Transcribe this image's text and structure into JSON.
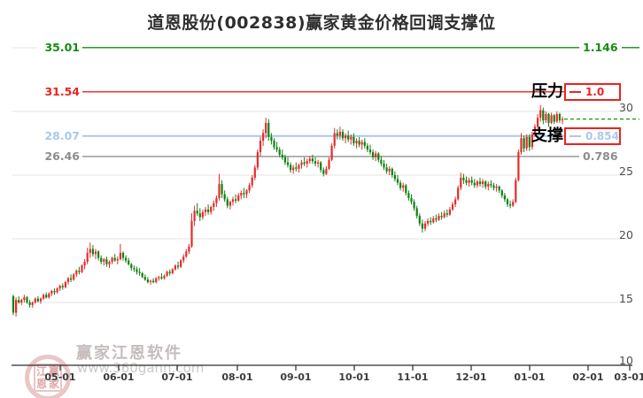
{
  "title": "道恩股份(002838)赢家黄金价格回调支撑位",
  "annotations": {
    "pressure_label": "压力",
    "support_label": "支撑",
    "pressure_value": "1.0",
    "support_value": "0.854"
  },
  "levels": [
    {
      "id": "ratio-1146",
      "price": 35.01,
      "price_label": "35.01",
      "ratio_label": "1.146",
      "color": "#168a16",
      "boxed": false
    },
    {
      "id": "pressure",
      "price": 31.54,
      "price_label": "31.54",
      "ratio_label": "1.0",
      "color": "#ee2222",
      "boxed": true
    },
    {
      "id": "support",
      "price": 28.07,
      "price_label": "28.07",
      "ratio_label": "0.854",
      "color": "#aac8ea",
      "boxed": true
    },
    {
      "id": "ratio-0786",
      "price": 26.46,
      "price_label": "26.46",
      "ratio_label": "0.786",
      "color": "#909090",
      "boxed": false
    }
  ],
  "y_axis": {
    "tick_labels": [
      "30",
      "25",
      "20",
      "15",
      "10"
    ],
    "tick_values": [
      30,
      25,
      20,
      15,
      10
    ]
  },
  "x_axis": {
    "tick_labels": [
      "05-01",
      "06-01",
      "07-01",
      "08-01",
      "09-01",
      "10-01",
      "11-01",
      "12-01",
      "01-01",
      "02-01",
      "03-01"
    ]
  },
  "watermark": {
    "brand": "赢家江恩软件",
    "url": "www.360gann.com",
    "seal_chars": [
      "江",
      "赢",
      "恩",
      "家"
    ]
  },
  "chart_data": {
    "type": "candlestick",
    "title": "道恩股份(002838)赢家黄金价格回调支撑位",
    "symbol": "道恩股份",
    "code": "002838",
    "up_color": "#e62b2b",
    "down_color": "#0e820e",
    "grid_prices": [
      35,
      30,
      25,
      20,
      15
    ],
    "price_levels": [
      {
        "ratio": "1.146",
        "price": 35.01
      },
      {
        "ratio": "1.0",
        "price": 31.54,
        "role": "压力"
      },
      {
        "ratio": "0.854",
        "price": 28.07,
        "role": "支撑"
      },
      {
        "ratio": "0.786",
        "price": 26.46
      }
    ],
    "current_price_line": 29.4,
    "x_tick_labels": [
      "05-01",
      "06-01",
      "07-01",
      "08-01",
      "09-01",
      "10-01",
      "11-01",
      "12-01",
      "01-01",
      "02-01",
      "03-01"
    ],
    "candles": [
      [
        15.5,
        15.6,
        14.0,
        14.2
      ],
      [
        14.2,
        15.4,
        13.9,
        15.2
      ],
      [
        15.2,
        15.5,
        14.9,
        15.0
      ],
      [
        15.0,
        15.3,
        14.8,
        15.2
      ],
      [
        15.2,
        15.6,
        15.0,
        15.4
      ],
      [
        15.4,
        15.5,
        14.9,
        15.0
      ],
      [
        15.0,
        15.2,
        14.6,
        14.8
      ],
      [
        14.8,
        15.1,
        14.6,
        15.0
      ],
      [
        15.0,
        15.4,
        14.9,
        15.3
      ],
      [
        15.3,
        15.5,
        15.0,
        15.1
      ],
      [
        15.1,
        15.4,
        14.9,
        15.3
      ],
      [
        15.3,
        15.7,
        15.2,
        15.6
      ],
      [
        15.6,
        15.8,
        15.3,
        15.4
      ],
      [
        15.4,
        15.8,
        15.3,
        15.7
      ],
      [
        15.7,
        16.0,
        15.5,
        15.9
      ],
      [
        15.9,
        16.1,
        15.6,
        15.8
      ],
      [
        15.8,
        16.2,
        15.7,
        16.1
      ],
      [
        16.1,
        16.4,
        15.9,
        16.3
      ],
      [
        16.3,
        16.5,
        16.0,
        16.2
      ],
      [
        16.2,
        16.7,
        16.1,
        16.6
      ],
      [
        16.6,
        17.0,
        16.4,
        16.9
      ],
      [
        16.9,
        17.2,
        16.6,
        16.8
      ],
      [
        16.8,
        17.3,
        16.7,
        17.2
      ],
      [
        17.2,
        17.6,
        17.0,
        17.5
      ],
      [
        17.5,
        17.8,
        17.2,
        17.4
      ],
      [
        17.4,
        18.0,
        17.3,
        17.9
      ],
      [
        17.9,
        18.4,
        17.6,
        18.2
      ],
      [
        18.2,
        19.3,
        18.0,
        18.9
      ],
      [
        18.9,
        19.7,
        18.5,
        19.2
      ],
      [
        19.2,
        19.5,
        18.6,
        18.8
      ],
      [
        18.8,
        19.2,
        18.4,
        19.0
      ],
      [
        19.0,
        19.1,
        18.3,
        18.5
      ],
      [
        18.5,
        18.7,
        18.0,
        18.2
      ],
      [
        18.2,
        18.5,
        17.9,
        18.4
      ],
      [
        18.4,
        18.6,
        17.8,
        18.0
      ],
      [
        18.0,
        18.3,
        17.7,
        18.2
      ],
      [
        18.2,
        18.6,
        18.0,
        18.5
      ],
      [
        18.5,
        18.8,
        18.2,
        18.3
      ],
      [
        18.3,
        18.6,
        18.0,
        18.4
      ],
      [
        18.4,
        19.6,
        18.3,
        18.9
      ],
      [
        18.9,
        19.0,
        18.3,
        18.5
      ],
      [
        18.5,
        18.7,
        18.1,
        18.3
      ],
      [
        18.3,
        18.5,
        17.9,
        18.0
      ],
      [
        18.0,
        18.1,
        17.5,
        17.7
      ],
      [
        17.7,
        17.9,
        17.4,
        17.6
      ],
      [
        17.6,
        17.8,
        17.2,
        17.4
      ],
      [
        17.4,
        17.7,
        17.1,
        17.3
      ],
      [
        17.3,
        17.4,
        16.9,
        17.0
      ],
      [
        17.0,
        17.2,
        16.7,
        16.8
      ],
      [
        16.8,
        17.0,
        16.5,
        16.6
      ],
      [
        16.6,
        16.8,
        16.4,
        16.7
      ],
      [
        16.7,
        16.9,
        16.5,
        16.6
      ],
      [
        16.6,
        17.0,
        16.5,
        16.9
      ],
      [
        16.9,
        17.1,
        16.7,
        17.0
      ],
      [
        17.0,
        17.3,
        16.8,
        16.9
      ],
      [
        16.9,
        17.2,
        16.8,
        17.1
      ],
      [
        17.1,
        17.5,
        17.0,
        17.4
      ],
      [
        17.4,
        17.6,
        17.1,
        17.3
      ],
      [
        17.3,
        17.7,
        17.2,
        17.6
      ],
      [
        17.6,
        18.0,
        17.5,
        17.9
      ],
      [
        17.9,
        18.2,
        17.6,
        17.8
      ],
      [
        17.8,
        18.4,
        17.7,
        18.3
      ],
      [
        18.3,
        18.8,
        18.1,
        18.6
      ],
      [
        18.6,
        19.2,
        18.5,
        19.0
      ],
      [
        19.0,
        19.6,
        18.8,
        19.4
      ],
      [
        19.4,
        22.0,
        19.3,
        21.4
      ],
      [
        21.4,
        22.6,
        21.0,
        22.2
      ],
      [
        22.2,
        22.8,
        21.8,
        22.0
      ],
      [
        22.0,
        22.4,
        21.4,
        21.7
      ],
      [
        21.7,
        22.3,
        21.5,
        22.1
      ],
      [
        22.1,
        22.5,
        21.8,
        22.3
      ],
      [
        22.3,
        22.7,
        21.9,
        22.1
      ],
      [
        22.1,
        22.6,
        21.9,
        22.5
      ],
      [
        22.5,
        23.0,
        22.2,
        22.8
      ],
      [
        22.8,
        23.4,
        22.5,
        23.2
      ],
      [
        23.2,
        25.1,
        23.0,
        24.3
      ],
      [
        24.3,
        24.6,
        23.2,
        23.5
      ],
      [
        23.5,
        23.8,
        22.9,
        23.1
      ],
      [
        23.1,
        23.3,
        22.4,
        22.6
      ],
      [
        22.6,
        23.0,
        22.3,
        22.9
      ],
      [
        22.9,
        23.3,
        22.6,
        23.1
      ],
      [
        23.1,
        23.5,
        22.8,
        23.0
      ],
      [
        23.0,
        23.6,
        22.9,
        23.4
      ],
      [
        23.4,
        23.8,
        23.1,
        23.6
      ],
      [
        23.6,
        24.0,
        23.2,
        23.5
      ],
      [
        23.5,
        23.9,
        23.2,
        23.8
      ],
      [
        23.8,
        24.4,
        23.6,
        24.2
      ],
      [
        24.2,
        25.0,
        24.0,
        24.8
      ],
      [
        24.8,
        25.8,
        24.6,
        25.6
      ],
      [
        25.6,
        27.0,
        25.4,
        26.8
      ],
      [
        26.8,
        28.0,
        26.5,
        27.7
      ],
      [
        27.7,
        28.6,
        27.3,
        28.3
      ],
      [
        28.3,
        29.5,
        27.9,
        29.1
      ],
      [
        29.1,
        29.4,
        27.7,
        28.0
      ],
      [
        28.0,
        28.3,
        27.4,
        27.7
      ],
      [
        27.7,
        27.9,
        27.0,
        27.2
      ],
      [
        27.2,
        27.6,
        26.8,
        27.0
      ],
      [
        27.0,
        27.2,
        26.4,
        26.6
      ],
      [
        26.6,
        27.0,
        26.2,
        26.4
      ],
      [
        26.4,
        26.6,
        25.8,
        26.0
      ],
      [
        26.0,
        26.4,
        25.6,
        25.8
      ],
      [
        25.8,
        26.0,
        25.2,
        25.4
      ],
      [
        25.4,
        25.8,
        25.1,
        25.6
      ],
      [
        25.6,
        26.0,
        25.3,
        25.5
      ],
      [
        25.5,
        25.9,
        25.2,
        25.8
      ],
      [
        25.8,
        26.2,
        25.5,
        26.0
      ],
      [
        26.0,
        26.4,
        25.7,
        25.9
      ],
      [
        25.9,
        26.3,
        25.6,
        26.1
      ],
      [
        26.1,
        26.5,
        25.9,
        26.3
      ],
      [
        26.3,
        26.6,
        25.9,
        26.1
      ],
      [
        26.1,
        26.4,
        25.7,
        25.9
      ],
      [
        25.9,
        26.2,
        25.6,
        26.0
      ],
      [
        26.0,
        26.1,
        25.2,
        25.4
      ],
      [
        25.4,
        25.6,
        24.9,
        25.1
      ],
      [
        25.1,
        25.7,
        25.0,
        25.5
      ],
      [
        25.5,
        26.4,
        25.4,
        26.2
      ],
      [
        26.2,
        27.5,
        26.1,
        27.3
      ],
      [
        27.3,
        28.7,
        27.1,
        28.3
      ],
      [
        28.3,
        28.6,
        27.8,
        28.1
      ],
      [
        28.1,
        28.8,
        27.8,
        28.4
      ],
      [
        28.4,
        28.6,
        27.7,
        27.9
      ],
      [
        27.9,
        28.3,
        27.5,
        28.1
      ],
      [
        28.1,
        28.5,
        27.6,
        27.8
      ],
      [
        27.8,
        28.2,
        27.4,
        28.0
      ],
      [
        28.0,
        28.3,
        27.3,
        27.5
      ],
      [
        27.5,
        27.9,
        27.1,
        27.7
      ],
      [
        27.7,
        28.0,
        27.2,
        27.4
      ],
      [
        27.4,
        27.8,
        27.0,
        27.6
      ],
      [
        27.6,
        27.9,
        27.1,
        27.3
      ],
      [
        27.3,
        27.5,
        26.8,
        27.0
      ],
      [
        27.0,
        27.4,
        26.6,
        26.8
      ],
      [
        26.8,
        27.0,
        26.2,
        26.4
      ],
      [
        26.4,
        26.9,
        26.1,
        26.7
      ],
      [
        26.7,
        26.8,
        26.0,
        26.2
      ],
      [
        26.2,
        26.5,
        25.7,
        25.9
      ],
      [
        25.9,
        26.2,
        25.4,
        25.6
      ],
      [
        25.6,
        25.9,
        25.1,
        25.3
      ],
      [
        25.3,
        25.7,
        25.0,
        25.5
      ],
      [
        25.5,
        25.6,
        24.8,
        25.0
      ],
      [
        25.0,
        25.3,
        24.5,
        24.7
      ],
      [
        24.7,
        25.0,
        24.2,
        24.4
      ],
      [
        24.4,
        24.6,
        23.8,
        24.0
      ],
      [
        24.0,
        24.4,
        23.7,
        24.2
      ],
      [
        24.2,
        24.3,
        23.4,
        23.6
      ],
      [
        23.6,
        23.8,
        23.0,
        23.2
      ],
      [
        23.2,
        23.5,
        22.7,
        22.9
      ],
      [
        22.9,
        23.1,
        22.2,
        22.4
      ],
      [
        22.4,
        22.6,
        21.6,
        21.8
      ],
      [
        21.8,
        22.0,
        21.0,
        21.2
      ],
      [
        21.2,
        21.5,
        20.5,
        20.8
      ],
      [
        20.8,
        21.4,
        20.6,
        21.2
      ],
      [
        21.2,
        21.6,
        21.0,
        21.4
      ],
      [
        21.4,
        21.7,
        21.1,
        21.3
      ],
      [
        21.3,
        21.8,
        21.2,
        21.6
      ],
      [
        21.6,
        21.9,
        21.3,
        21.5
      ],
      [
        21.5,
        22.0,
        21.4,
        21.8
      ],
      [
        21.8,
        22.1,
        21.5,
        21.7
      ],
      [
        21.7,
        22.2,
        21.6,
        22.0
      ],
      [
        22.0,
        22.3,
        21.7,
        21.9
      ],
      [
        21.9,
        22.5,
        21.8,
        22.3
      ],
      [
        22.3,
        22.9,
        22.2,
        22.7
      ],
      [
        22.7,
        23.3,
        22.5,
        23.1
      ],
      [
        23.1,
        24.2,
        23.0,
        24.0
      ],
      [
        24.0,
        25.2,
        23.8,
        24.8
      ],
      [
        24.8,
        25.1,
        24.3,
        24.6
      ],
      [
        24.6,
        24.9,
        24.2,
        24.4
      ],
      [
        24.4,
        24.8,
        24.1,
        24.6
      ],
      [
        24.6,
        24.9,
        24.2,
        24.4
      ],
      [
        24.4,
        24.7,
        24.0,
        24.2
      ],
      [
        24.2,
        24.6,
        24.0,
        24.5
      ],
      [
        24.5,
        24.8,
        24.1,
        24.3
      ],
      [
        24.3,
        24.7,
        24.0,
        24.5
      ],
      [
        24.5,
        24.6,
        23.9,
        24.1
      ],
      [
        24.1,
        24.5,
        23.8,
        24.3
      ],
      [
        24.3,
        24.6,
        24.0,
        24.2
      ],
      [
        24.2,
        24.4,
        23.8,
        24.0
      ],
      [
        24.0,
        24.3,
        23.7,
        24.1
      ],
      [
        24.1,
        24.2,
        23.6,
        23.8
      ],
      [
        23.8,
        23.9,
        23.2,
        23.4
      ],
      [
        23.4,
        23.6,
        22.9,
        23.1
      ],
      [
        23.1,
        23.2,
        22.5,
        22.7
      ],
      [
        22.7,
        23.0,
        22.4,
        22.6
      ],
      [
        22.6,
        23.1,
        22.5,
        22.9
      ],
      [
        22.9,
        24.8,
        22.8,
        24.6
      ],
      [
        24.6,
        27.0,
        24.5,
        26.8
      ],
      [
        26.8,
        28.3,
        26.6,
        27.9
      ],
      [
        27.9,
        28.1,
        26.8,
        27.1
      ],
      [
        27.1,
        28.2,
        26.9,
        28.0
      ],
      [
        28.0,
        28.2,
        26.9,
        27.2
      ],
      [
        27.2,
        28.4,
        27.0,
        28.2
      ],
      [
        28.2,
        29.0,
        28.0,
        28.8
      ],
      [
        28.8,
        29.8,
        28.6,
        29.5
      ],
      [
        29.5,
        30.5,
        29.2,
        30.1
      ],
      [
        30.1,
        30.3,
        29.0,
        29.3
      ],
      [
        29.3,
        30.0,
        29.1,
        29.8
      ],
      [
        29.8,
        29.9,
        28.8,
        29.1
      ],
      [
        29.1,
        29.9,
        29.0,
        29.7
      ],
      [
        29.7,
        29.8,
        29.0,
        29.2
      ],
      [
        29.2,
        30.0,
        29.1,
        29.8
      ],
      [
        29.8,
        29.9,
        29.1,
        29.3
      ],
      [
        29.3,
        29.6,
        29.0,
        29.4
      ]
    ]
  }
}
